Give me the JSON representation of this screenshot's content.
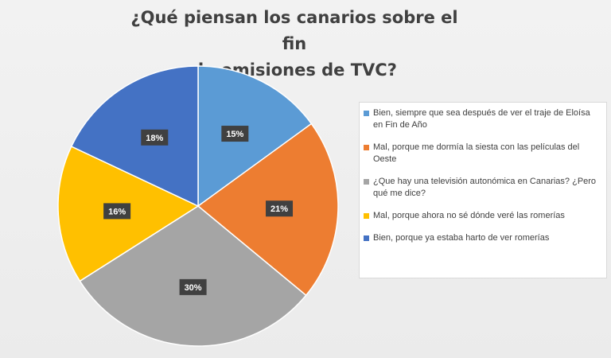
{
  "chart_data": {
    "type": "pie",
    "title_lines": [
      "¿Qué piensan los canarios sobre el fin",
      "de emisiones de TVC?"
    ],
    "slices": [
      {
        "label": "Bien, siempre que sea después de ver el traje de Eloísa en Fin de Año",
        "value": 15,
        "value_label": "15%",
        "color": "#5b9bd5"
      },
      {
        "label": "Mal, porque me dormía la siesta con las películas del Oeste",
        "value": 21,
        "value_label": "21%",
        "color": "#ed7d31"
      },
      {
        "label": "¿Que hay una televisión autonómica en Canarias? ¿Pero qué me dice?",
        "value": 30,
        "value_label": "30%",
        "color": "#a5a5a5"
      },
      {
        "label": "Mal, porque ahora no sé dónde veré las romerías",
        "value": 16,
        "value_label": "16%",
        "color": "#ffc000"
      },
      {
        "label": "Bien, porque ya estaba harto de ver romerías",
        "value": 18,
        "value_label": "18%",
        "color": "#4472c4"
      }
    ],
    "start_angle_deg": 0,
    "direction": "clockwise",
    "legend_position": "right",
    "data_label_style": "dark box with white bold text"
  }
}
